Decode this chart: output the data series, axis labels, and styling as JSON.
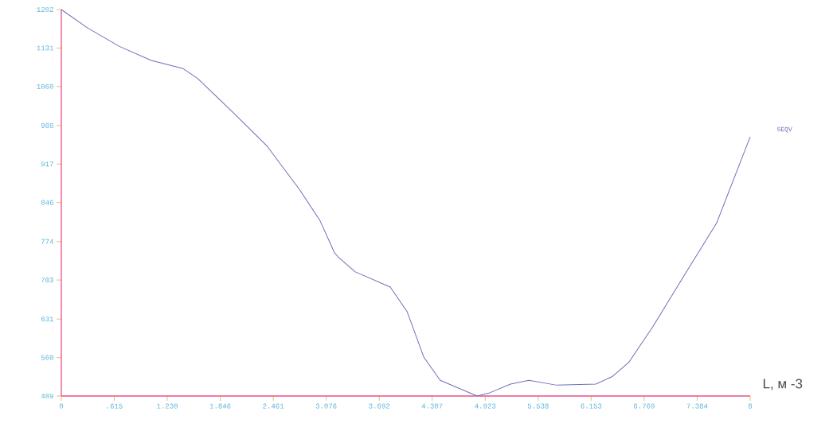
{
  "chart_data": {
    "type": "line",
    "xlabel": "L, м -3",
    "x": [
      0,
      0.305,
      0.675,
      1.045,
      1.415,
      1.582,
      1.97,
      2.396,
      2.525,
      2.766,
      3.006,
      3.173,
      3.219,
      3.414,
      3.82,
      4.015,
      4.209,
      4.4,
      4.829,
      4.977,
      5.217,
      5.43,
      5.754,
      6.207,
      6.4,
      6.59,
      6.87,
      7.24,
      7.61,
      8
    ],
    "series": [
      {
        "name": "SEQV",
        "color": "#6e6ebe",
        "values": [
          1202,
          1168,
          1134,
          1108,
          1093,
          1075,
          1016,
          949,
          921,
          870,
          812,
          753,
          745,
          718,
          690,
          645,
          561,
          518,
          489,
          495,
          511,
          518,
          509,
          511,
          525,
          551,
          617,
          713,
          808,
          967
        ]
      }
    ],
    "xlim": [
      0,
      8
    ],
    "ylim": [
      489,
      1202
    ],
    "xticks": [
      0,
      {
        "value": 0.615,
        "label": ".615"
      },
      {
        "value": 1.23,
        "label": "1.230"
      },
      1.846,
      2.461,
      3.076,
      3.692,
      4.307,
      4.923,
      5.538,
      6.153,
      6.769,
      7.384,
      8
    ],
    "yticks": [
      489,
      560,
      631,
      703,
      774,
      846,
      917,
      988,
      1060,
      1131,
      1202
    ],
    "marker": "none",
    "line_style": "solid"
  }
}
